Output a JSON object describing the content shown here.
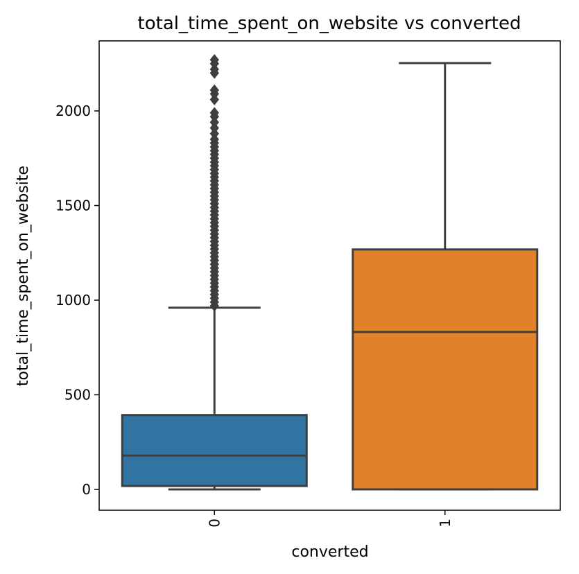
{
  "chart_data": {
    "type": "box",
    "title": "total_time_spent_on_website vs converted",
    "xlabel": "converted",
    "ylabel": "total_time_spent_on_website",
    "categories": [
      "0",
      "1"
    ],
    "ylim": [
      -110,
      2370
    ],
    "yticks": [
      0,
      500,
      1000,
      1500,
      2000
    ],
    "grid": false,
    "boxes": [
      {
        "category": "0",
        "color": "#3274a1",
        "whisker_low": 0,
        "q1": 18,
        "median": 179,
        "q3": 393,
        "whisker_high": 960,
        "outliers": [
          970,
          990,
          1010,
          1030,
          1050,
          1070,
          1090,
          1110,
          1130,
          1150,
          1170,
          1190,
          1210,
          1230,
          1250,
          1270,
          1290,
          1310,
          1330,
          1350,
          1370,
          1390,
          1410,
          1430,
          1450,
          1470,
          1490,
          1510,
          1530,
          1550,
          1570,
          1590,
          1610,
          1630,
          1650,
          1670,
          1690,
          1710,
          1730,
          1750,
          1770,
          1790,
          1810,
          1830,
          1850,
          1880,
          1910,
          1940,
          1970,
          1990,
          2060,
          2090,
          2110,
          2200,
          2220,
          2250,
          2270
        ]
      },
      {
        "category": "1",
        "color": "#e1812c",
        "whisker_low": 0,
        "q1": 0,
        "median": 832,
        "q3": 1268,
        "whisker_high": 2253,
        "outliers": []
      }
    ],
    "line_color": "#3f3f3f"
  }
}
